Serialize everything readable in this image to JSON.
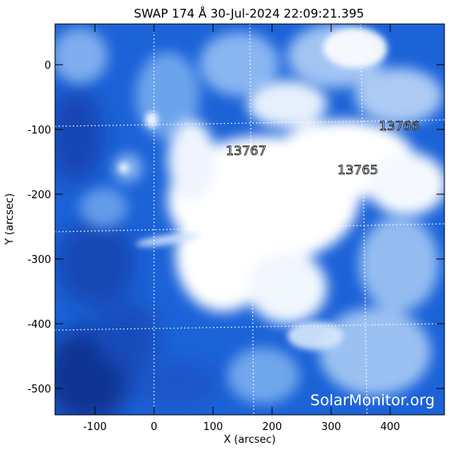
{
  "title": "SWAP 174 Å 30-Jul-2024 22:09:21.395",
  "x_axis_label": "X (arcsec)",
  "y_axis_label": "Y (arcsec)",
  "x_ticks": [
    "-100",
    "0",
    "100",
    "200",
    "300",
    "400"
  ],
  "y_ticks": [
    "0",
    "-100",
    "-200",
    "-300",
    "-400",
    "-500"
  ],
  "active_regions": [
    "13767",
    "13766",
    "13765"
  ],
  "watermark": "SolarMonitor.org",
  "colors": {
    "background_blue": "#1a5fd6",
    "bright_core": "#ffffff",
    "grid": "#ffffff"
  }
}
